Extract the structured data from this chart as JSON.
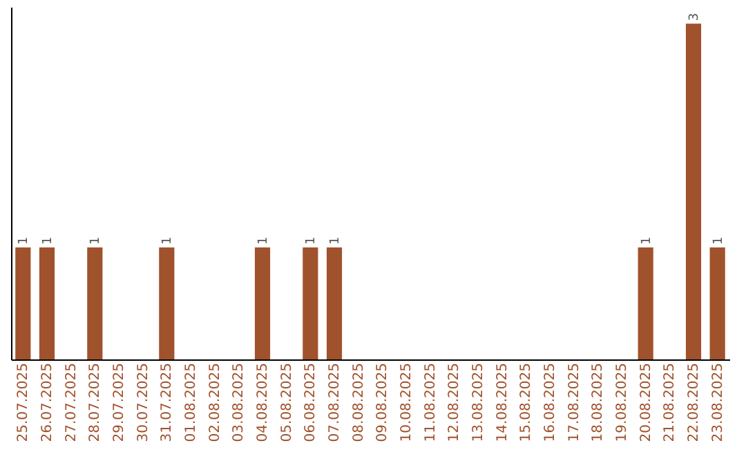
{
  "chart_data": {
    "type": "bar",
    "categories": [
      "25.07.2025",
      "26.07.2025",
      "27.07.2025",
      "28.07.2025",
      "29.07.2025",
      "30.07.2025",
      "31.07.2025",
      "01.08.2025",
      "02.08.2025",
      "03.08.2025",
      "04.08.2025",
      "05.08.2025",
      "06.08.2025",
      "07.08.2025",
      "08.08.2025",
      "09.08.2025",
      "10.08.2025",
      "11.08.2025",
      "12.08.2025",
      "13.08.2025",
      "14.08.2025",
      "15.08.2025",
      "16.08.2025",
      "17.08.2025",
      "18.08.2025",
      "19.08.2025",
      "20.08.2025",
      "21.08.2025",
      "22.08.2025",
      "23.08.2025"
    ],
    "values": [
      1,
      1,
      0,
      1,
      0,
      0,
      1,
      0,
      0,
      0,
      1,
      0,
      1,
      1,
      0,
      0,
      0,
      0,
      0,
      0,
      0,
      0,
      0,
      0,
      0,
      0,
      1,
      0,
      3,
      1
    ],
    "value_labels": [
      "1",
      "1",
      null,
      "1",
      null,
      null,
      "1",
      null,
      null,
      null,
      "1",
      null,
      "1",
      "1",
      null,
      null,
      null,
      null,
      null,
      null,
      null,
      null,
      null,
      null,
      null,
      null,
      "1",
      null,
      "3",
      "1"
    ],
    "color": "#a0522d",
    "tick_labels": "x"
  }
}
